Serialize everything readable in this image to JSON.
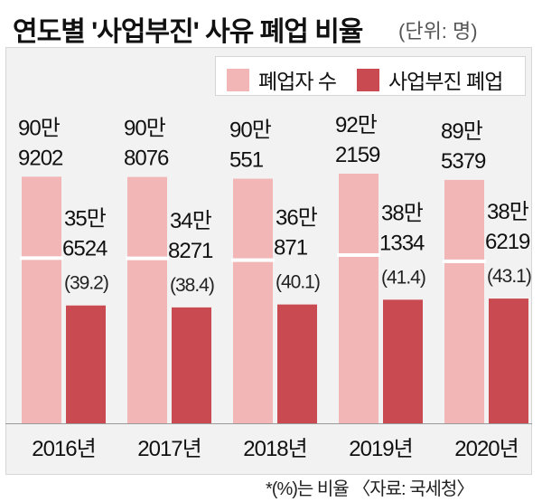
{
  "title": "연도별 '사업부진' 사유 폐업 비율",
  "unit": "(단위: 명)",
  "footnote": "*(%)는 비율 〈자료: 국세청〉",
  "colors": {
    "total": "#f2b6b6",
    "slump": "#c94a50",
    "chart_bg": "#f2f2f2"
  },
  "chart_data": {
    "type": "bar",
    "categories": [
      "2016년",
      "2017년",
      "2018년",
      "2019년",
      "2020년"
    ],
    "series": [
      {
        "name": "폐업자 수",
        "values": [
          909202,
          908076,
          900551,
          922159,
          895379
        ],
        "labels": [
          [
            "90만",
            "9202"
          ],
          [
            "90만",
            "8076"
          ],
          [
            "90만",
            "551"
          ],
          [
            "92만",
            "2159"
          ],
          [
            "89만",
            "5379"
          ]
        ]
      },
      {
        "name": "사업부진 폐업",
        "values": [
          356524,
          348271,
          360871,
          381334,
          386219
        ],
        "labels": [
          [
            "35만",
            "6524"
          ],
          [
            "34만",
            "8271"
          ],
          [
            "36만",
            "871"
          ],
          [
            "38만",
            "1334"
          ],
          [
            "38만",
            "6219"
          ]
        ],
        "ratio_labels": [
          "(39.2)",
          "(38.4)",
          "(40.1)",
          "(41.4)",
          "(43.1)"
        ]
      }
    ],
    "ylim": [
      0,
      1000000
    ],
    "legend": "top-right"
  }
}
